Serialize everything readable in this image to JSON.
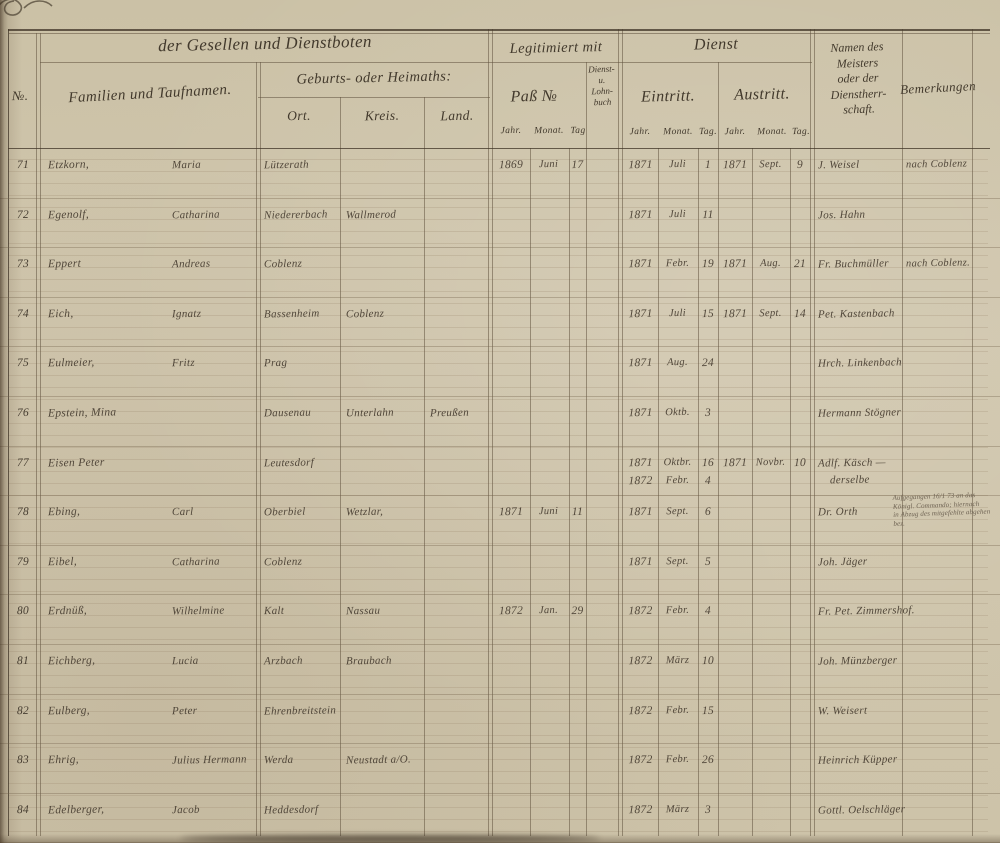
{
  "colors": {
    "paper": "#cdc3a9",
    "ink": "#4a4136",
    "table_line": "#63533f",
    "pencil": "#6e6353"
  },
  "header": {
    "group_servants": "der Gesellen und Dienstboten",
    "no": "№.",
    "names": "Familien und Taufnamen.",
    "origin_title": "Geburts- oder Heimaths:",
    "origin_ort": "Ort.",
    "origin_kreis": "Kreis.",
    "origin_land": "Land.",
    "legit_title": "Legitimiert mit",
    "pass_label": "Paß №",
    "pass_jahr": "Jahr.",
    "pass_monat": "Monat.",
    "pass_tag": "Tag",
    "buch_lines": [
      "Dienst-",
      "u.",
      "Lohn-",
      "buch"
    ],
    "dienst_title": "Dienst",
    "eintritt_label": "Eintritt.",
    "ein_jahr": "Jahr.",
    "ein_monat": "Monat.",
    "ein_tag": "Tag.",
    "austritt_label": "Austritt.",
    "aus_jahr": "Jahr.",
    "aus_monat": "Monat.",
    "aus_tag": "Tag.",
    "meister_lines": [
      "Namen des",
      "Meisters",
      "oder der",
      "Dienstherr-",
      "schaft."
    ],
    "bemerkungen": "Bemerkungen"
  },
  "pencil_note": {
    "lines": [
      "Aufgegangen 16/1 73 an das",
      "Königl. Commando; hiernach",
      "in Abzug des mitgefehlte abgehen",
      "bez."
    ]
  },
  "rows": [
    {
      "no": "71",
      "name": "Etzkorn,",
      "vorname": "Maria",
      "ort": "Lützerath",
      "kreis": "",
      "land": "",
      "pj": "1869",
      "pm": "Juni",
      "pt": "17",
      "ej": "1871",
      "em": "Juli",
      "et": "1",
      "ej2": "",
      "em2": "",
      "et2": "",
      "aj": "1871",
      "am": "Sept.",
      "at": "9",
      "m1": "J. Weisel",
      "m2": "",
      "bem": "nach Coblenz"
    },
    {
      "no": "72",
      "name": "Egenolf,",
      "vorname": "Catharina",
      "ort": "Niedererbach",
      "kreis": "Wallmerod",
      "land": "",
      "pj": "",
      "pm": "",
      "pt": "",
      "ej": "1871",
      "em": "Juli",
      "et": "11",
      "ej2": "",
      "em2": "",
      "et2": "",
      "aj": "",
      "am": "",
      "at": "",
      "m1": "Jos. Hahn",
      "m2": "",
      "bem": ""
    },
    {
      "no": "73",
      "name": "Eppert",
      "vorname": "Andreas",
      "ort": "Coblenz",
      "kreis": "",
      "land": "",
      "pj": "",
      "pm": "",
      "pt": "",
      "ej": "1871",
      "em": "Febr.",
      "et": "19",
      "ej2": "",
      "em2": "",
      "et2": "",
      "aj": "1871",
      "am": "Aug.",
      "at": "21",
      "m1": "Fr. Buchmüller",
      "m2": "",
      "bem": "nach Coblenz."
    },
    {
      "no": "74",
      "name": "Eich,",
      "vorname": "Ignatz",
      "ort": "Bassenheim",
      "kreis": "Coblenz",
      "land": "",
      "pj": "",
      "pm": "",
      "pt": "",
      "ej": "1871",
      "em": "Juli",
      "et": "15",
      "ej2": "",
      "em2": "",
      "et2": "",
      "aj": "1871",
      "am": "Sept.",
      "at": "14",
      "m1": "Pet. Kastenbach",
      "m2": "",
      "bem": ""
    },
    {
      "no": "75",
      "name": "Eulmeier,",
      "vorname": "Fritz",
      "ort": "Prag",
      "kreis": "",
      "land": "",
      "pj": "",
      "pm": "",
      "pt": "",
      "ej": "1871",
      "em": "Aug.",
      "et": "24",
      "ej2": "",
      "em2": "",
      "et2": "",
      "aj": "",
      "am": "",
      "at": "",
      "m1": "Hrch. Linkenbach",
      "m2": "",
      "bem": ""
    },
    {
      "no": "76",
      "name": "Epstein, Mina",
      "vorname": "",
      "ort": "Dausenau",
      "kreis": "Unterlahn",
      "land": "Preußen",
      "pj": "",
      "pm": "",
      "pt": "",
      "ej": "1871",
      "em": "Oktb.",
      "et": "3",
      "ej2": "",
      "em2": "",
      "et2": "",
      "aj": "",
      "am": "",
      "at": "",
      "m1": "Hermann Stögner",
      "m2": "",
      "bem": ""
    },
    {
      "no": "77",
      "name": "Eisen Peter",
      "vorname": "",
      "ort": "Leutesdorf",
      "kreis": "",
      "land": "",
      "pj": "",
      "pm": "",
      "pt": "",
      "ej": "1871",
      "em": "Oktbr.",
      "et": "16",
      "ej2": "1872",
      "em2": "Febr.",
      "et2": "4",
      "aj": "1871",
      "am": "Novbr.",
      "at": "10",
      "m1": "Adlf. Käsch —",
      "m2": "derselbe",
      "bem": ""
    },
    {
      "no": "78",
      "name": "Ebing,",
      "vorname": "Carl",
      "ort": "Oberbiel",
      "kreis": "Wetzlar,",
      "land": "",
      "pj": "1871",
      "pm": "Juni",
      "pt": "11",
      "ej": "1871",
      "em": "Sept.",
      "et": "6",
      "ej2": "",
      "em2": "",
      "et2": "",
      "aj": "",
      "am": "",
      "at": "",
      "m1": "Dr. Orth",
      "m2": "",
      "bem": ""
    },
    {
      "no": "79",
      "name": "Eibel,",
      "vorname": "Catharina",
      "ort": "Coblenz",
      "kreis": "",
      "land": "",
      "pj": "",
      "pm": "",
      "pt": "",
      "ej": "1871",
      "em": "Sept.",
      "et": "5",
      "ej2": "",
      "em2": "",
      "et2": "",
      "aj": "",
      "am": "",
      "at": "",
      "m1": "Joh. Jäger",
      "m2": "",
      "bem": ""
    },
    {
      "no": "80",
      "name": "Erdnüß,",
      "vorname": "Wilhelmine",
      "ort": "Kalt",
      "kreis": "Nassau",
      "land": "",
      "pj": "1872",
      "pm": "Jan.",
      "pt": "29",
      "ej": "1872",
      "em": "Febr.",
      "et": "4",
      "ej2": "",
      "em2": "",
      "et2": "",
      "aj": "",
      "am": "",
      "at": "",
      "m1": "Fr. Pet. Zimmershof.",
      "m2": "",
      "bem": ""
    },
    {
      "no": "81",
      "name": "Eichberg,",
      "vorname": "Lucia",
      "ort": "Arzbach",
      "kreis": "Braubach",
      "land": "",
      "pj": "",
      "pm": "",
      "pt": "",
      "ej": "1872",
      "em": "März",
      "et": "10",
      "ej2": "",
      "em2": "",
      "et2": "",
      "aj": "",
      "am": "",
      "at": "",
      "m1": "Joh. Münzberger",
      "m2": "",
      "bem": ""
    },
    {
      "no": "82",
      "name": "Eulberg,",
      "vorname": "Peter",
      "ort": "Ehrenbreitstein",
      "kreis": "",
      "land": "",
      "pj": "",
      "pm": "",
      "pt": "",
      "ej": "1872",
      "em": "Febr.",
      "et": "15",
      "ej2": "",
      "em2": "",
      "et2": "",
      "aj": "",
      "am": "",
      "at": "",
      "m1": "W. Weisert",
      "m2": "",
      "bem": ""
    },
    {
      "no": "83",
      "name": "Ehrig,",
      "vorname": "Julius Hermann",
      "ort": "Werda",
      "kreis": "Neustadt a/O.",
      "land": "",
      "pj": "",
      "pm": "",
      "pt": "",
      "ej": "1872",
      "em": "Febr.",
      "et": "26",
      "ej2": "",
      "em2": "",
      "et2": "",
      "aj": "",
      "am": "",
      "at": "",
      "m1": "Heinrich Küpper",
      "m2": "",
      "bem": ""
    },
    {
      "no": "84",
      "name": "Edelberger,",
      "vorname": "Jacob",
      "ort": "Heddesdorf",
      "kreis": "",
      "land": "",
      "pj": "",
      "pm": "",
      "pt": "",
      "ej": "1872",
      "em": "März",
      "et": "3",
      "ej2": "",
      "em2": "",
      "et2": "",
      "aj": "",
      "am": "",
      "at": "",
      "m1": "Gottl. Oelschläger",
      "m2": "",
      "bem": ""
    }
  ]
}
